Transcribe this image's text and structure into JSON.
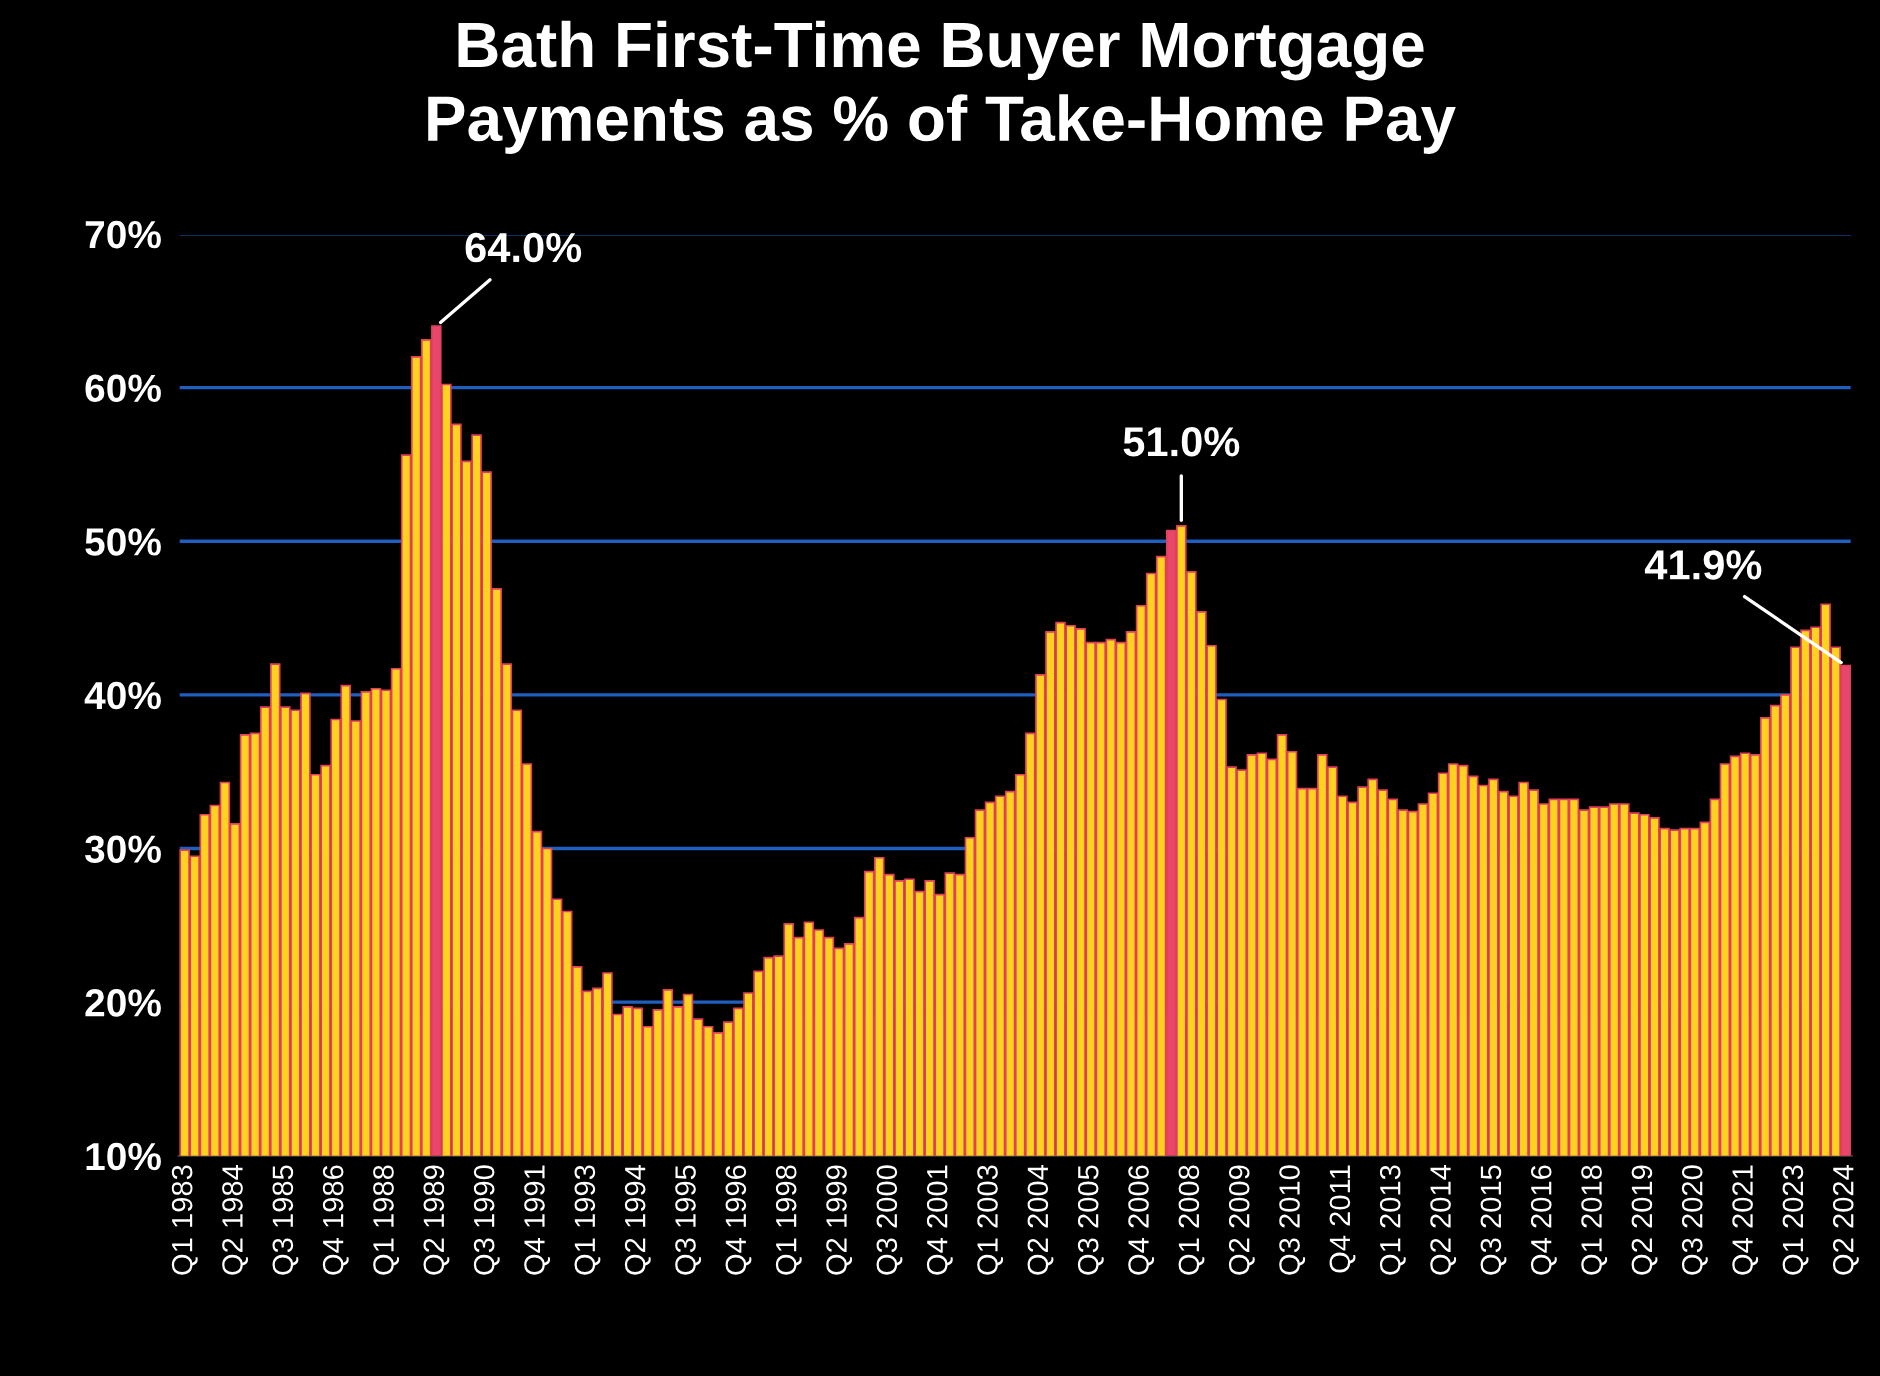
{
  "chart_data": {
    "type": "bar",
    "title": "Bath First-Time Buyer Mortgage\nPayments as % of Take-Home Pay",
    "categories": [
      "Q1 1983",
      null,
      null,
      null,
      null,
      "Q2 1984",
      null,
      null,
      null,
      null,
      "Q3 1985",
      null,
      null,
      null,
      null,
      "Q4 1986",
      null,
      null,
      null,
      null,
      "Q1 1988",
      null,
      null,
      null,
      null,
      "Q2 1989",
      null,
      null,
      null,
      null,
      "Q3 1990",
      null,
      null,
      null,
      null,
      "Q4 1991",
      null,
      null,
      null,
      null,
      "Q1 1993",
      null,
      null,
      null,
      null,
      "Q2 1994",
      null,
      null,
      null,
      null,
      "Q3 1995",
      null,
      null,
      null,
      null,
      "Q4 1996",
      null,
      null,
      null,
      null,
      "Q1 1998",
      null,
      null,
      null,
      null,
      "Q2 1999",
      null,
      null,
      null,
      null,
      "Q3 2000",
      null,
      null,
      null,
      null,
      "Q4 2001",
      null,
      null,
      null,
      null,
      "Q1 2003",
      null,
      null,
      null,
      null,
      "Q2 2004",
      null,
      null,
      null,
      null,
      "Q3 2005",
      null,
      null,
      null,
      null,
      "Q4 2006",
      null,
      null,
      null,
      null,
      "Q1 2008",
      null,
      null,
      null,
      null,
      "Q2 2009",
      null,
      null,
      null,
      null,
      "Q3 2010",
      null,
      null,
      null,
      null,
      "Q4 2011",
      null,
      null,
      null,
      null,
      "Q1 2013",
      null,
      null,
      null,
      null,
      "Q2 2014",
      null,
      null,
      null,
      null,
      "Q3 2015",
      null,
      null,
      null,
      null,
      "Q4 2016",
      null,
      null,
      null,
      null,
      "Q1 2018",
      null,
      null,
      null,
      null,
      "Q2 2019",
      null,
      null,
      null,
      null,
      "Q3 2020",
      null,
      null,
      null,
      null,
      "Q4 2021",
      null,
      null,
      null,
      null,
      "Q1 2023",
      null,
      null,
      null,
      null,
      "Q2 2024"
    ],
    "values": [
      29.9,
      29.5,
      32.2,
      32.8,
      34.3,
      31.6,
      37.4,
      37.5,
      39.2,
      42.0,
      39.2,
      39.0,
      40.1,
      34.8,
      35.4,
      38.4,
      40.6,
      38.3,
      40.2,
      40.4,
      40.3,
      41.7,
      55.6,
      62.0,
      63.1,
      64.0,
      60.2,
      57.6,
      55.2,
      56.9,
      54.5,
      46.9,
      42.0,
      39.0,
      35.5,
      31.1,
      30.0,
      26.7,
      25.9,
      22.3,
      20.7,
      20.9,
      21.9,
      19.2,
      19.7,
      19.6,
      18.4,
      19.5,
      20.8,
      19.7,
      20.5,
      18.9,
      18.4,
      18.0,
      18.7,
      19.6,
      20.6,
      22.0,
      22.9,
      23.0,
      25.1,
      24.2,
      25.2,
      24.7,
      24.2,
      23.5,
      23.8,
      25.5,
      28.5,
      29.4,
      28.3,
      27.9,
      28.0,
      27.2,
      27.9,
      27.0,
      28.4,
      28.3,
      30.7,
      32.5,
      33.0,
      33.4,
      33.7,
      34.8,
      37.5,
      41.3,
      44.1,
      44.7,
      44.5,
      44.3,
      43.4,
      43.4,
      43.6,
      43.4,
      44.1,
      45.8,
      47.9,
      49.0,
      50.7,
      51.0,
      48.0,
      45.4,
      43.2,
      39.7,
      35.3,
      35.1,
      36.1,
      36.2,
      35.8,
      37.4,
      36.3,
      33.9,
      33.9,
      36.1,
      35.3,
      33.4,
      33.0,
      34.0,
      34.5,
      33.8,
      33.2,
      32.5,
      32.4,
      32.9,
      33.6,
      34.9,
      35.5,
      35.4,
      34.7,
      34.1,
      34.5,
      33.7,
      33.4,
      34.3,
      33.8,
      32.9,
      33.2,
      33.2,
      33.2,
      32.5,
      32.7,
      32.7,
      32.9,
      32.9,
      32.3,
      32.2,
      32.0,
      31.3,
      31.2,
      31.3,
      31.3,
      31.7,
      33.2,
      35.5,
      36.0,
      36.2,
      36.1,
      38.5,
      39.3,
      40.0,
      43.1,
      44.2,
      44.4,
      45.9,
      43.1,
      41.9
    ],
    "colors": [
      "#ffd21f",
      "#ffd21f",
      "#ffd21f",
      "#ffd21f",
      "#ffd21f",
      "#ffd21f",
      "#ffd21f",
      "#ffd21f",
      "#ffd21f",
      "#ffd21f",
      "#ffd21f",
      "#ffd21f",
      "#ffd21f",
      "#ffd21f",
      "#ffd21f",
      "#ffd21f",
      "#ffd21f",
      "#ffd21f",
      "#ffd21f",
      "#ffd21f",
      "#ffd21f",
      "#ffd21f",
      "#ffd21f",
      "#ffd21f",
      "#ffd21f",
      "#e8466a",
      "#ffd21f",
      "#ffd21f",
      "#ffd21f",
      "#ffd21f",
      "#ffd21f",
      "#ffd21f",
      "#ffd21f",
      "#ffd21f",
      "#ffd21f",
      "#ffd21f",
      "#ffd21f",
      "#ffd21f",
      "#ffd21f",
      "#ffd21f",
      "#ffd21f",
      "#ffd21f",
      "#ffd21f",
      "#ffd21f",
      "#ffd21f",
      "#ffd21f",
      "#ffd21f",
      "#ffd21f",
      "#ffd21f",
      "#ffd21f",
      "#ffd21f",
      "#ffd21f",
      "#ffd21f",
      "#ffd21f",
      "#ffd21f",
      "#ffd21f",
      "#ffd21f",
      "#ffd21f",
      "#ffd21f",
      "#ffd21f",
      "#ffd21f",
      "#ffd21f",
      "#ffd21f",
      "#ffd21f",
      "#ffd21f",
      "#ffd21f",
      "#ffd21f",
      "#ffd21f",
      "#ffd21f",
      "#ffd21f",
      "#ffd21f",
      "#ffd21f",
      "#ffd21f",
      "#ffd21f",
      "#ffd21f",
      "#ffd21f",
      "#ffd21f",
      "#ffd21f",
      "#ffd21f",
      "#ffd21f",
      "#ffd21f",
      "#ffd21f",
      "#ffd21f",
      "#ffd21f",
      "#ffd21f",
      "#ffd21f",
      "#ffd21f",
      "#ffd21f",
      "#ffd21f",
      "#ffd21f",
      "#ffd21f",
      "#ffd21f",
      "#ffd21f",
      "#ffd21f",
      "#ffd21f",
      "#ffd21f",
      "#ffd21f",
      "#ffd21f",
      "#e8466a",
      "#ffd21f",
      "#ffd21f",
      "#ffd21f",
      "#ffd21f",
      "#ffd21f",
      "#ffd21f",
      "#ffd21f",
      "#ffd21f",
      "#ffd21f",
      "#ffd21f",
      "#ffd21f",
      "#ffd21f",
      "#ffd21f",
      "#ffd21f",
      "#ffd21f",
      "#ffd21f",
      "#ffd21f",
      "#ffd21f",
      "#ffd21f",
      "#ffd21f",
      "#ffd21f",
      "#ffd21f",
      "#ffd21f",
      "#ffd21f",
      "#ffd21f",
      "#ffd21f",
      "#ffd21f",
      "#ffd21f",
      "#ffd21f",
      "#ffd21f",
      "#ffd21f",
      "#ffd21f",
      "#ffd21f",
      "#ffd21f",
      "#ffd21f",
      "#ffd21f",
      "#ffd21f",
      "#ffd21f",
      "#ffd21f",
      "#ffd21f",
      "#ffd21f",
      "#ffd21f",
      "#ffd21f",
      "#ffd21f",
      "#ffd21f",
      "#ffd21f",
      "#ffd21f",
      "#ffd21f",
      "#ffd21f",
      "#ffd21f",
      "#ffd21f",
      "#ffd21f",
      "#ffd21f",
      "#ffd21f",
      "#ffd21f",
      "#ffd21f",
      "#ffd21f",
      "#ffd21f",
      "#ffd21f",
      "#ffd21f",
      "#ffd21f",
      "#ffd21f",
      "#ffd21f",
      "#ffd21f",
      "#ffd21f",
      "#ffd21f",
      "#e8466a"
    ],
    "value_labels": [
      null,
      null,
      null,
      null,
      null,
      null,
      null,
      null,
      null,
      null,
      null,
      null,
      null,
      null,
      null,
      null,
      null,
      null,
      null,
      null,
      null,
      null,
      null,
      null,
      null,
      "64.0%",
      null,
      null,
      null,
      null,
      null,
      null,
      null,
      null,
      null,
      null,
      null,
      null,
      null,
      null,
      null,
      null,
      null,
      null,
      null,
      null,
      null,
      null,
      null,
      null,
      null,
      null,
      null,
      null,
      null,
      null,
      null,
      null,
      null,
      null,
      null,
      null,
      null,
      null,
      null,
      null,
      null,
      null,
      null,
      null,
      null,
      null,
      null,
      null,
      null,
      null,
      null,
      null,
      null,
      null,
      null,
      null,
      null,
      null,
      null,
      null,
      null,
      null,
      null,
      null,
      null,
      null,
      null,
      null,
      null,
      null,
      null,
      null,
      null,
      "51.0%",
      null,
      null,
      null,
      null,
      null,
      null,
      null,
      null,
      null,
      null,
      null,
      null,
      null,
      null,
      null,
      null,
      null,
      null,
      null,
      null,
      null,
      null,
      null,
      null,
      null,
      null,
      null,
      null,
      null,
      null,
      null,
      null,
      null,
      null,
      null,
      null,
      null,
      null,
      null,
      null,
      null,
      null,
      null,
      null,
      null,
      null,
      null,
      null,
      null,
      null,
      null,
      null,
      null,
      null,
      null,
      null,
      null,
      null,
      null,
      null,
      null,
      null,
      null,
      null,
      null,
      "41.9%"
    ],
    "ylim": [
      10,
      70
    ],
    "yticks": [
      {
        "value": 10,
        "label": "10%"
      },
      {
        "value": 20,
        "label": "20%"
      },
      {
        "value": 30,
        "label": "30%"
      },
      {
        "value": 40,
        "label": "40%"
      },
      {
        "value": 50,
        "label": "50%"
      },
      {
        "value": 60,
        "label": "60%"
      },
      {
        "value": 70,
        "label": "70%"
      }
    ],
    "grid": "y"
  }
}
